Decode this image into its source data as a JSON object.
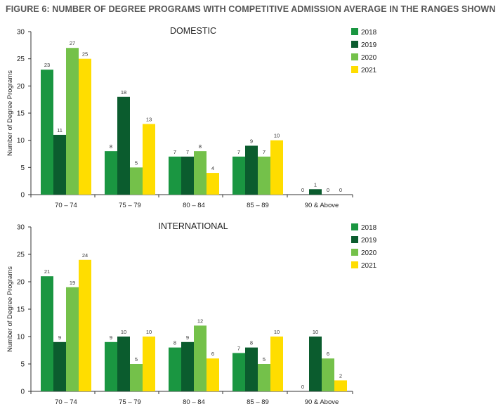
{
  "figure_title": "FIGURE 6: NUMBER OF DEGREE PROGRAMS WITH COMPETITIVE ADMISSION AVERAGE IN THE RANGES SHOWN",
  "colors": {
    "2018": "#1a9641",
    "2019": "#0b5c2e",
    "2020": "#74c14a",
    "2021": "#ffdd00"
  },
  "chart_data": [
    {
      "type": "bar",
      "title": "DOMESTIC",
      "ylabel": "Number of Degree Programs",
      "xlabel": "",
      "ylim": [
        0,
        30
      ],
      "yticks": [
        0,
        5,
        10,
        15,
        20,
        25,
        30
      ],
      "legend_position": "right",
      "grid": false,
      "categories": [
        "70 – 74",
        "75 – 79",
        "80 – 84",
        "85 – 89",
        "90 & Above"
      ],
      "series": [
        {
          "name": "2018",
          "values": [
            23,
            8,
            7,
            7,
            0
          ]
        },
        {
          "name": "2019",
          "values": [
            11,
            18,
            7,
            9,
            1
          ]
        },
        {
          "name": "2020",
          "values": [
            27,
            5,
            8,
            7,
            0
          ]
        },
        {
          "name": "2021",
          "values": [
            25,
            13,
            4,
            10,
            0
          ]
        }
      ]
    },
    {
      "type": "bar",
      "title": "INTERNATIONAL",
      "ylabel": "Number of Degree Programs",
      "xlabel": "",
      "ylim": [
        0,
        30
      ],
      "yticks": [
        0,
        5,
        10,
        15,
        20,
        25,
        30
      ],
      "legend_position": "right",
      "grid": false,
      "categories": [
        "70 – 74",
        "75 – 79",
        "80 – 84",
        "85 – 89",
        "90 & Above"
      ],
      "series": [
        {
          "name": "2018",
          "values": [
            21,
            9,
            8,
            7,
            0
          ]
        },
        {
          "name": "2019",
          "values": [
            9,
            10,
            9,
            8,
            10
          ]
        },
        {
          "name": "2020",
          "values": [
            19,
            5,
            12,
            5,
            6
          ]
        },
        {
          "name": "2021",
          "values": [
            24,
            10,
            6,
            10,
            2
          ]
        }
      ]
    }
  ]
}
